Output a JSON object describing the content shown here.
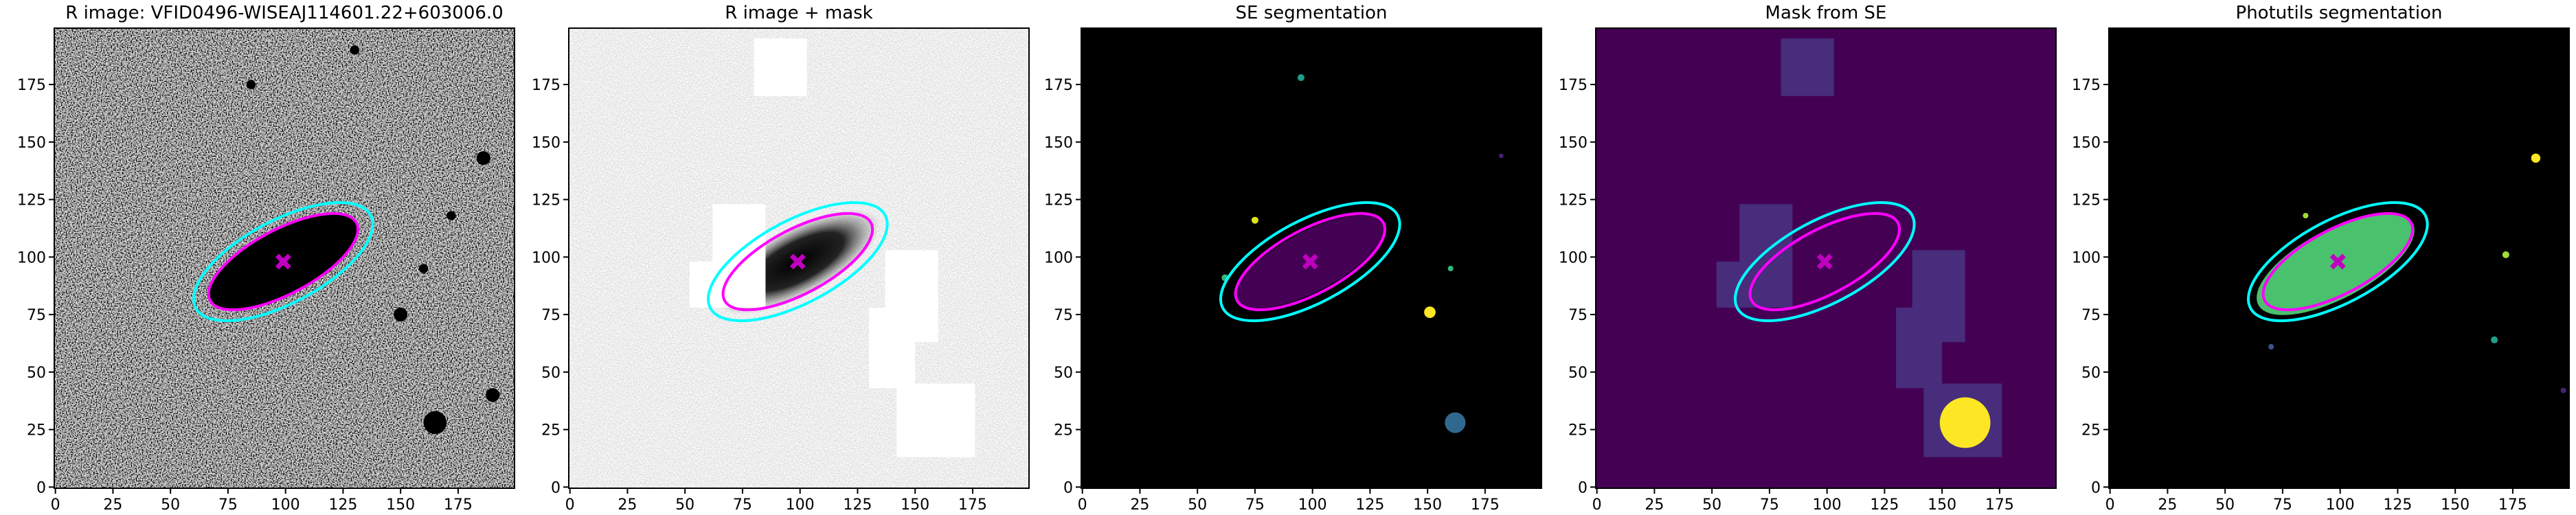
{
  "chart_data": [
    {
      "type": "image",
      "title": "R image: VFID0496-WISEAJ114601.22+603006.0",
      "xlim": [
        -0.5,
        199.5
      ],
      "ylim": [
        -0.5,
        199.5
      ],
      "xticks": [
        0,
        25,
        50,
        75,
        100,
        125,
        150,
        175
      ],
      "yticks": [
        0,
        25,
        50,
        75,
        100,
        125,
        150,
        175
      ]
    },
    {
      "type": "image",
      "title": "R image + mask",
      "xlim": [
        -0.5,
        199.5
      ],
      "ylim": [
        -0.5,
        199.5
      ],
      "xticks": [
        0,
        25,
        50,
        75,
        100,
        125,
        150,
        175
      ],
      "yticks": [
        0,
        25,
        50,
        75,
        100,
        125,
        150,
        175
      ]
    },
    {
      "type": "image",
      "title": "SE segmentation",
      "xlim": [
        -0.5,
        199.5
      ],
      "ylim": [
        -0.5,
        199.5
      ],
      "xticks": [
        0,
        25,
        50,
        75,
        100,
        125,
        150,
        175
      ],
      "yticks": [
        0,
        25,
        50,
        75,
        100,
        125,
        150,
        175
      ]
    },
    {
      "type": "image",
      "title": "Mask from SE",
      "xlim": [
        -0.5,
        199.5
      ],
      "ylim": [
        -0.5,
        199.5
      ],
      "xticks": [
        0,
        25,
        50,
        75,
        100,
        125,
        150,
        175
      ],
      "yticks": [
        0,
        25,
        50,
        75,
        100,
        125,
        150,
        175
      ]
    },
    {
      "type": "image",
      "title": "Photutils segmentation",
      "xlim": [
        -0.5,
        199.5
      ],
      "ylim": [
        -0.5,
        199.5
      ],
      "xticks": [
        0,
        25,
        50,
        75,
        100,
        125,
        150,
        175
      ],
      "yticks": [
        0,
        25,
        50,
        75,
        100,
        125,
        150,
        175
      ]
    }
  ]
}
